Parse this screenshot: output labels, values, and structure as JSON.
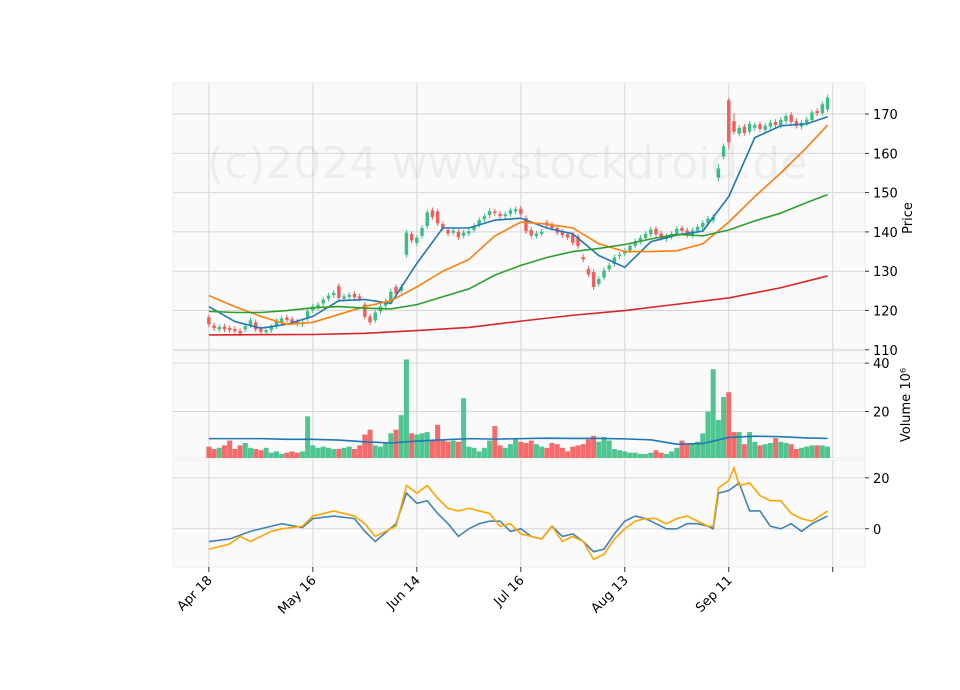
{
  "chart_data": [
    {
      "type": "candlestick",
      "watermark": "(c)2024 www.stockdroid.de",
      "ylabel": "Price",
      "ylim": [
        109.7,
        177.9
      ],
      "yticks": [
        110,
        120,
        130,
        140,
        150,
        160,
        170
      ],
      "grid": true,
      "up_color": "#3cbf85",
      "down_color": "#f45b5b",
      "open": [
        118.3,
        116.2,
        115.2,
        115.9,
        115.6,
        115.3,
        114.8,
        115.2,
        116.3,
        117,
        115.3,
        114.5,
        115,
        116,
        117,
        118.2,
        117.8,
        117.2,
        116.5,
        118,
        120,
        120.8,
        121.8,
        123,
        123.9,
        126.2,
        123,
        123.5,
        124.2,
        123.6,
        121.5,
        118.5,
        117.5,
        119.8,
        121.2,
        122.5,
        126,
        125,
        134.2,
        139.5,
        137.2,
        139,
        141.5,
        145.5,
        145.2,
        142,
        140.5,
        139.8,
        140,
        139,
        139.6,
        140.5,
        141.8,
        143.2,
        144.3,
        145.2,
        144.6,
        144,
        144.6,
        145.2,
        145.9,
        143.5,
        140.5,
        139,
        139.5,
        142.4,
        141.8,
        141,
        140,
        139.4,
        139.3,
        138.8,
        133.6,
        130.6,
        129.8,
        126.8,
        128.4,
        130.5,
        131.8,
        133.8,
        134.5,
        135.3,
        136.5,
        137.5,
        138.4,
        139.4,
        140.8,
        139.6,
        138.2,
        138.8,
        139.6,
        141,
        140.4,
        139.1,
        140.3,
        141.2,
        142.2,
        142.9,
        153.8,
        159.2,
        173.5,
        168.2,
        165,
        166.8,
        165.5,
        166.5,
        167.4,
        166,
        166.8,
        168,
        167,
        168.2,
        169.8,
        168.2,
        166.8,
        167.6,
        168.5,
        170.8,
        170.3,
        171.2
      ],
      "high": [
        119,
        116.9,
        116.5,
        116.6,
        116.3,
        116,
        115.5,
        116.7,
        118.2,
        117.7,
        116,
        115.7,
        116.5,
        118,
        118.7,
        118.9,
        118.5,
        117.9,
        117.5,
        120.5,
        121.7,
        122.2,
        123.5,
        124.5,
        125.2,
        126.9,
        124.3,
        124.7,
        124.9,
        124.3,
        122.2,
        119.2,
        120.2,
        121.7,
        123,
        125.5,
        126.7,
        126.7,
        140.5,
        140.2,
        139.2,
        141.7,
        145.7,
        146.2,
        145.9,
        142.7,
        141.2,
        141,
        140.7,
        140.5,
        140.9,
        142.2,
        143.7,
        144.7,
        146,
        145.9,
        145.3,
        145.2,
        146.2,
        146.5,
        146.6,
        144.2,
        141.2,
        140.3,
        140.8,
        143.1,
        142.5,
        141.7,
        140.7,
        140.1,
        140,
        139.5,
        134.3,
        131.3,
        130.5,
        128.7,
        130.9,
        132.2,
        134.2,
        134.9,
        135.9,
        137.2,
        138.3,
        139.2,
        140.2,
        141.3,
        141.5,
        140.3,
        139.6,
        140.2,
        141.5,
        141.7,
        141.1,
        141.1,
        142,
        143,
        144.1,
        144.5,
        157.4,
        162.5,
        174.2,
        170.2,
        167.2,
        167.5,
        168.2,
        167.9,
        168.1,
        167.7,
        168.5,
        168.7,
        169.2,
        170.2,
        170.5,
        168.9,
        168.5,
        169.3,
        171.1,
        171.5,
        173.2,
        174.9
      ],
      "low": [
        115.8,
        114.8,
        114.5,
        114.5,
        114.3,
        114.1,
        113.5,
        114.5,
        115.6,
        114.5,
        113.9,
        113.8,
        114.3,
        115.3,
        116.3,
        116.9,
        116.3,
        115.9,
        115.8,
        117.3,
        119.3,
        120.1,
        121.1,
        122.3,
        123.2,
        122.5,
        122.3,
        122.8,
        122.7,
        122.3,
        117.7,
        116.3,
        116.8,
        119.1,
        120.5,
        121.8,
        123.6,
        124.3,
        133.5,
        137.1,
        136.5,
        138.3,
        140.8,
        143.1,
        141.5,
        140.3,
        138.9,
        139.1,
        137.9,
        138.3,
        138.9,
        139.8,
        141.1,
        142.5,
        143.6,
        144.1,
        143.3,
        143.3,
        143.9,
        144.5,
        143.9,
        139.5,
        138.4,
        138.3,
        138.8,
        140.9,
        140.3,
        139.1,
        138.5,
        137.9,
        136.5,
        135.7,
        132.3,
        128.5,
        125.3,
        126.1,
        127.7,
        129.8,
        131.1,
        133.1,
        133.8,
        134.6,
        135.8,
        136.8,
        137.7,
        138.7,
        138.7,
        137.8,
        137.5,
        138.1,
        138.9,
        139.6,
        138.5,
        138.4,
        139.6,
        140.5,
        141.5,
        142.2,
        152.8,
        158.5,
        161,
        164.8,
        164.3,
        164.5,
        164.8,
        165.8,
        165.5,
        165.3,
        166.1,
        166.5,
        166.3,
        167.5,
        167.3,
        166.3,
        166.1,
        166.9,
        167.8,
        169.5,
        169.6,
        170.5
      ],
      "close": [
        116.5,
        115.5,
        115.8,
        115.2,
        115,
        114.8,
        114.2,
        116,
        117.5,
        115.2,
        114.6,
        115,
        115.8,
        117.3,
        118,
        117.6,
        117,
        116.6,
        116.8,
        119.8,
        121,
        121.5,
        122.8,
        123.8,
        124.5,
        123.2,
        123.6,
        124,
        123.4,
        123,
        118.4,
        117,
        119.5,
        121,
        122.3,
        124.8,
        124.3,
        126,
        139.8,
        137.8,
        138.5,
        141,
        145,
        143.8,
        142.2,
        141,
        139.6,
        140.3,
        138.6,
        139.8,
        140.2,
        141.5,
        143,
        144,
        145.3,
        144.8,
        144,
        144.5,
        145.5,
        145.8,
        144.6,
        140.2,
        139.1,
        139.6,
        140.1,
        141.6,
        141,
        139.8,
        139.2,
        138.6,
        137.2,
        136.4,
        133,
        129.2,
        126,
        128,
        130.2,
        131.5,
        133.5,
        134.2,
        135.2,
        136.5,
        137.6,
        138.5,
        139.5,
        140.6,
        139.4,
        138.5,
        138.9,
        139.5,
        140.8,
        140.3,
        139.2,
        140.4,
        141.3,
        142.3,
        143.4,
        143.8,
        156.2,
        161.8,
        162.8,
        165.5,
        166.5,
        165.2,
        167.5,
        167.2,
        166.2,
        167,
        167.8,
        167.2,
        168.5,
        169.5,
        168,
        167,
        167.8,
        168.6,
        170.4,
        170.2,
        172.5,
        174.2
      ],
      "series": [
        {
          "color": "#1f77b4",
          "x": [
            0,
            5,
            10,
            15,
            20,
            25,
            30,
            35,
            40,
            45,
            50,
            55,
            60,
            65,
            70,
            75,
            80,
            85,
            90,
            95,
            100,
            105,
            110,
            115,
            119
          ],
          "values": [
            121,
            117.2,
            115.5,
            116.5,
            118.5,
            122.5,
            122.8,
            121.8,
            132,
            141,
            141,
            143,
            143.5,
            141,
            139.5,
            134,
            131,
            137.5,
            139.2,
            140.2,
            149,
            164,
            167,
            167.5,
            169.3
          ]
        },
        {
          "color": "#ff7f0e",
          "x": [
            0,
            5,
            10,
            15,
            20,
            25,
            30,
            35,
            40,
            45,
            50,
            55,
            60,
            65,
            70,
            75,
            80,
            85,
            90,
            95,
            100,
            105,
            110,
            115,
            119
          ],
          "values": [
            123.8,
            121,
            118.5,
            116.5,
            117,
            119,
            121,
            122.5,
            126,
            130,
            133,
            139,
            142.5,
            142,
            141,
            137,
            135,
            135,
            135.2,
            137,
            142.5,
            149,
            155,
            161.5,
            167.2
          ]
        },
        {
          "color": "#2ca02c",
          "x": [
            0,
            5,
            10,
            15,
            20,
            25,
            30,
            35,
            40,
            45,
            50,
            55,
            60,
            65,
            70,
            75,
            80,
            85,
            90,
            95,
            100,
            105,
            110,
            115,
            119
          ],
          "values": [
            119.8,
            119.5,
            119.5,
            120,
            120.7,
            121,
            120.6,
            120.4,
            121.5,
            123.5,
            125.5,
            129,
            131.5,
            133.5,
            135,
            135.8,
            136.8,
            138.2,
            139.4,
            139,
            140.5,
            142.8,
            144.8,
            147.5,
            149.5
          ]
        },
        {
          "color": "#d62728",
          "x": [
            0,
            20,
            30,
            40,
            50,
            60,
            70,
            80,
            90,
            100,
            110,
            119
          ],
          "values": [
            113.8,
            113.9,
            114.2,
            114.9,
            115.7,
            117.3,
            118.8,
            120,
            121.6,
            123.2,
            125.8,
            128.8
          ]
        }
      ]
    },
    {
      "type": "bar",
      "ylabel": "Volume",
      "ylabel_offset": "10⁶",
      "ylim": [
        0.8,
        45
      ],
      "yticks": [
        20,
        40
      ],
      "grid": true,
      "values": [
        5.5,
        4.5,
        5,
        6,
        8,
        4.5,
        6,
        7,
        5,
        4.5,
        4,
        5,
        3,
        3.5,
        2.5,
        3,
        3.5,
        3,
        3.5,
        18,
        6,
        5,
        5.5,
        5,
        4.5,
        4.5,
        5,
        5.5,
        4.5,
        6,
        10.5,
        12.5,
        6,
        5.5,
        7,
        11,
        12.5,
        18.5,
        41.5,
        11,
        10.5,
        11,
        11.5,
        8,
        14.5,
        8,
        7.5,
        8,
        7.5,
        25.5,
        5.5,
        5,
        3.5,
        5,
        8,
        14,
        6,
        5,
        6.5,
        8.5,
        7.5,
        7,
        8,
        6.5,
        5.5,
        5,
        7,
        6.5,
        5,
        3.5,
        5.5,
        6,
        6.5,
        8.5,
        10,
        7.5,
        9.5,
        8,
        4.5,
        4,
        3.5,
        3,
        3,
        2.5,
        2.5,
        3,
        4,
        3,
        2.5,
        3.5,
        5,
        8,
        6.5,
        6.5,
        7.5,
        11,
        20,
        37.5,
        16.5,
        26,
        28,
        11.5,
        11.5,
        6.5,
        11.5,
        7.5,
        6,
        6.5,
        7,
        9,
        7.5,
        7,
        6.5,
        4.5,
        5,
        5.5,
        6,
        6,
        6,
        5.5
      ],
      "series": [
        {
          "color": "#1f77b4",
          "x": [
            0,
            5,
            10,
            15,
            20,
            25,
            30,
            35,
            40,
            45,
            50,
            55,
            60,
            65,
            70,
            75,
            80,
            85,
            90,
            95,
            100,
            105,
            110,
            115,
            119
          ],
          "values": [
            8.8,
            8.8,
            8.8,
            8.5,
            8.5,
            8.2,
            7.5,
            7,
            7.8,
            8.3,
            8.8,
            8.6,
            8.8,
            9,
            8.9,
            8.9,
            8.7,
            8.3,
            6.5,
            6.8,
            9.3,
            9.8,
            9.6,
            9.1,
            8.9
          ]
        }
      ]
    },
    {
      "type": "line",
      "ylim": [
        -15,
        27
      ],
      "yticks": [
        0,
        20
      ],
      "grid": true,
      "xlim": [
        -6.9,
        126.2
      ],
      "xticks": [
        {
          "value": 0,
          "label": "Apr 18"
        },
        {
          "value": 20,
          "label": "May 16"
        },
        {
          "value": 40,
          "label": "Jun 14"
        },
        {
          "value": 60,
          "label": "Jul 16"
        },
        {
          "value": 80,
          "label": "Aug 13"
        },
        {
          "value": 100,
          "label": "Sep 11"
        },
        {
          "value": 120,
          "label": null
        }
      ],
      "series": [
        {
          "color": "#4682b4",
          "x": [
            0,
            4,
            8,
            12,
            14,
            18,
            20,
            24,
            28,
            30,
            32,
            36,
            38,
            40,
            42,
            44,
            46,
            48,
            50,
            52,
            54,
            56,
            58,
            60,
            62,
            64,
            66,
            68,
            70,
            72,
            74,
            76,
            78,
            80,
            82,
            84,
            86,
            88,
            90,
            92,
            94,
            96,
            97,
            98,
            100,
            102,
            104,
            106,
            108,
            110,
            112,
            114,
            116,
            119
          ],
          "values": [
            -5,
            -4,
            -1,
            1,
            2,
            0.5,
            4,
            5,
            4,
            -1,
            -5,
            2,
            14,
            10,
            11,
            6,
            2,
            -3,
            0,
            2,
            3,
            3,
            -1,
            0,
            -3,
            -4,
            1,
            -3,
            -2,
            -5,
            -9,
            -8,
            -2,
            3,
            5,
            4,
            2,
            0,
            0,
            2,
            2,
            1,
            0,
            14,
            15,
            18,
            7,
            7,
            1,
            0,
            2,
            -1,
            2,
            5
          ]
        },
        {
          "color": "#ffa500",
          "x": [
            0,
            4,
            6,
            8,
            10,
            12,
            14,
            18,
            20,
            24,
            28,
            30,
            32,
            36,
            38,
            40,
            42,
            44,
            46,
            48,
            50,
            52,
            54,
            56,
            58,
            60,
            62,
            64,
            66,
            68,
            70,
            72,
            74,
            76,
            78,
            80,
            82,
            84,
            86,
            88,
            90,
            92,
            94,
            96,
            97,
            98,
            100,
            101,
            102,
            104,
            106,
            108,
            110,
            112,
            114,
            116,
            119
          ],
          "values": [
            -8,
            -6,
            -3,
            -5,
            -3,
            -1,
            0,
            1,
            5,
            7,
            5,
            2,
            -3,
            1,
            17,
            14,
            17,
            12,
            8,
            7,
            8,
            7,
            6,
            1,
            2,
            -2,
            -3,
            -4,
            1,
            -5,
            -3,
            -5,
            -12,
            -10,
            -4,
            0,
            3,
            4,
            4,
            2,
            4,
            5,
            3,
            1,
            1,
            16,
            19,
            24,
            17,
            18,
            13,
            11,
            11,
            6,
            4,
            3,
            7
          ]
        }
      ]
    }
  ]
}
